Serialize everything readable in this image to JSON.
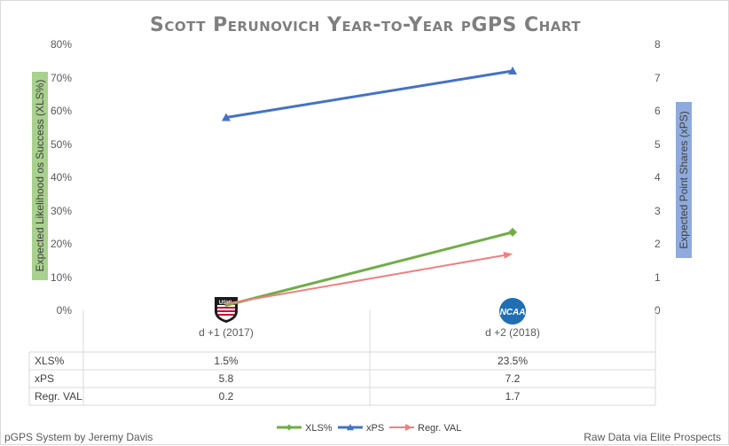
{
  "chart_data": {
    "type": "line",
    "title": "Scott Perunovich Year-to-Year pGPS Chart",
    "categories": [
      "d +1 (2017)",
      "d +2 (2018)"
    ],
    "category_logos": [
      "USHL",
      "NCAA"
    ],
    "ylabel": "Expected Likelihood os Success (XLS%)",
    "y2label": "Expected Point Shares (xPS)",
    "ylim": [
      0,
      80
    ],
    "y2lim": [
      0,
      8
    ],
    "yticks": [
      "0%",
      "10%",
      "20%",
      "30%",
      "40%",
      "50%",
      "60%",
      "70%",
      "80%"
    ],
    "y2ticks": [
      "0",
      "1",
      "2",
      "3",
      "4",
      "5",
      "6",
      "7",
      "8"
    ],
    "series": [
      {
        "name": "XLS%",
        "axis": "left",
        "values": [
          1.5,
          23.5
        ],
        "labels": [
          "1.5%",
          "23.5%"
        ],
        "color": "#70ad47",
        "marker": "diamond"
      },
      {
        "name": "xPS",
        "axis": "right",
        "values": [
          5.8,
          7.2
        ],
        "labels": [
          "5.8",
          "7.2"
        ],
        "color": "#4472c4",
        "marker": "triangle"
      },
      {
        "name": "Regr. VAL",
        "axis": "right",
        "values": [
          0.2,
          1.7
        ],
        "labels": [
          "0.2",
          "1.7"
        ],
        "color": "#f08080",
        "marker": "arrow"
      }
    ],
    "axis_title_colors": {
      "left": "#a9d18e",
      "right": "#8faadc"
    }
  },
  "footer": {
    "left": "pGPS System by Jeremy Davis",
    "right": "Raw Data via Elite Prospects"
  }
}
